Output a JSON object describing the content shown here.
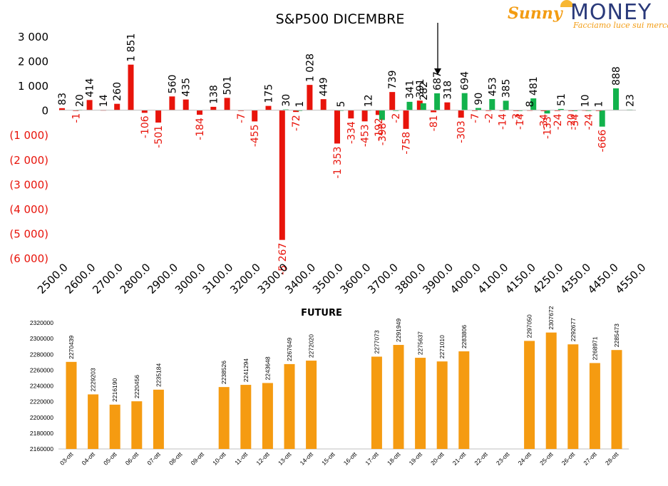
{
  "logo": {
    "brand1": "Sunny",
    "brand2": "MONEY",
    "tagline": "Facciamo luce sui mercati"
  },
  "colors": {
    "red": "#e8140b",
    "green": "#12b24c",
    "orange": "#f59b11",
    "neg_label": "#e8140b",
    "axis": "#000000"
  },
  "chart_data": [
    {
      "type": "bar",
      "title": "S&P500 DICEMBRE",
      "x_tick_labels": [
        "2500.0",
        "2600.0",
        "2700.0",
        "2800.0",
        "2900.0",
        "3000.0",
        "3100.0",
        "3200.0",
        "3300.0",
        "3400.0",
        "3500.0",
        "3600.0",
        "3700.0",
        "3800.0",
        "3900.0",
        "4000.0",
        "4100.0",
        "4150.0",
        "4250.0",
        "4350.0",
        "4450.0",
        "4550.0"
      ],
      "y_tick_labels": [
        "3 000",
        "2 000",
        "1 000",
        "0",
        "(1 000)",
        "(2 000)",
        "(3 000)",
        "(4 000)",
        "(5 000)",
        "(6 000)"
      ],
      "y_tick_values": [
        3000,
        2000,
        1000,
        0,
        -1000,
        -2000,
        -3000,
        -4000,
        -5000,
        -6000
      ],
      "ylim": [
        -6000,
        3000
      ],
      "series": [
        {
          "color": "red",
          "x": [
            2500,
            2550,
            2600,
            2650,
            2700,
            2750,
            2800,
            2850,
            2900,
            2950,
            3000,
            3050,
            3100,
            3150,
            3200,
            3250,
            3300,
            3350,
            3400,
            3450,
            3500,
            3550,
            3600,
            3650,
            3700,
            3750,
            3800,
            3850,
            3900,
            3950
          ],
          "values": [
            83,
            -1,
            414,
            14,
            260,
            1851,
            -106,
            -501,
            560,
            435,
            -184,
            138,
            501,
            -7,
            -455,
            175,
            -5267,
            -72,
            1028,
            449,
            -1353,
            -334,
            -453,
            -192,
            739,
            -758,
            391,
            -81,
            318,
            -303
          ],
          "labels": [
            "83",
            "-1",
            "414",
            "14",
            "260",
            "1 851",
            "-106",
            "-501",
            "560",
            "435",
            "-184",
            "138",
            "501",
            "-7",
            "-455",
            "175",
            "-5 267",
            "-72",
            "1 028",
            "449",
            "-1 353",
            "-334",
            "-453",
            "-192",
            "739",
            "-758",
            "391",
            "-81",
            "318",
            "-303"
          ]
        },
        {
          "color": "green",
          "x": [
            2550,
            2600,
            2650,
            2700,
            2750,
            2800,
            2850,
            2900,
            2950,
            3000,
            3050,
            3100,
            3150,
            3200,
            3250,
            3300,
            3350,
            3400,
            3450,
            3500,
            3550,
            3600,
            3650,
            3700,
            3750,
            3800,
            3850,
            3900,
            3950,
            4000,
            4050,
            4100,
            4150,
            4200,
            4250,
            4300,
            4350,
            4400,
            4450,
            4500,
            4550
          ],
          "values": [
            20,
            0,
            0,
            0,
            0,
            0,
            0,
            0,
            0,
            0,
            0,
            0,
            0,
            0,
            0,
            30,
            1,
            0,
            0,
            5,
            0,
            12,
            -398,
            -2,
            341,
            282,
            687,
            0,
            694,
            90,
            453,
            385,
            -14,
            481,
            -133,
            51,
            -34,
            -24,
            -666,
            888,
            23
          ],
          "labels": [
            "20",
            "",
            "",
            "",
            "",
            "",
            "",
            "",
            "",
            "",
            "",
            "",
            "",
            "",
            "",
            "30",
            "1",
            "",
            "",
            "5",
            "",
            "12",
            "-398",
            "-2",
            "341",
            "282",
            "687",
            "",
            "694",
            "90",
            "453",
            "385",
            "-14",
            "481",
            "-133",
            "51",
            "-34",
            "-24",
            "-666",
            "888",
            "23"
          ]
        },
        {
          "color": "red",
          "x": [
            4000,
            4050,
            4100,
            4150,
            4200,
            4250,
            4300,
            4350,
            4400,
            4450,
            4500
          ],
          "values": [
            -7,
            -2,
            -14,
            -3,
            8,
            -34,
            -24,
            -20,
            10,
            1,
            0
          ],
          "labels": [
            "-7",
            "-2",
            "-14",
            "-3",
            "8",
            "-34",
            "-24",
            "-20",
            "10",
            "1",
            ""
          ]
        }
      ],
      "annotation": "arrow"
    },
    {
      "type": "bar",
      "title": "FUTURE",
      "categories": [
        "03-ott",
        "04-ott",
        "05-ott",
        "06-ott",
        "07-ott",
        "08-ott",
        "09-ott",
        "10-ott",
        "11-ott",
        "12-ott",
        "13-ott",
        "14-ott",
        "15-ott",
        "16-ott",
        "17-ott",
        "18-ott",
        "19-ott",
        "20-ott",
        "21-ott",
        "22-ott",
        "23-ott",
        "24-ott",
        "25-ott",
        "26-ott",
        "27-ott",
        "28-ott"
      ],
      "values": [
        2270439,
        2229203,
        2216190,
        2220456,
        2235184,
        null,
        null,
        2238526,
        2241294,
        2243648,
        2267649,
        2272020,
        null,
        null,
        2277073,
        2291949,
        2275637,
        2271010,
        2283806,
        null,
        null,
        2297050,
        2307672,
        2292677,
        2268971,
        2285473
      ],
      "y_tick_labels": [
        "2320000",
        "2300000",
        "2280000",
        "2260000",
        "2240000",
        "2220000",
        "2200000",
        "2180000",
        "2160000"
      ],
      "ylim": [
        2160000,
        2320000
      ]
    }
  ]
}
